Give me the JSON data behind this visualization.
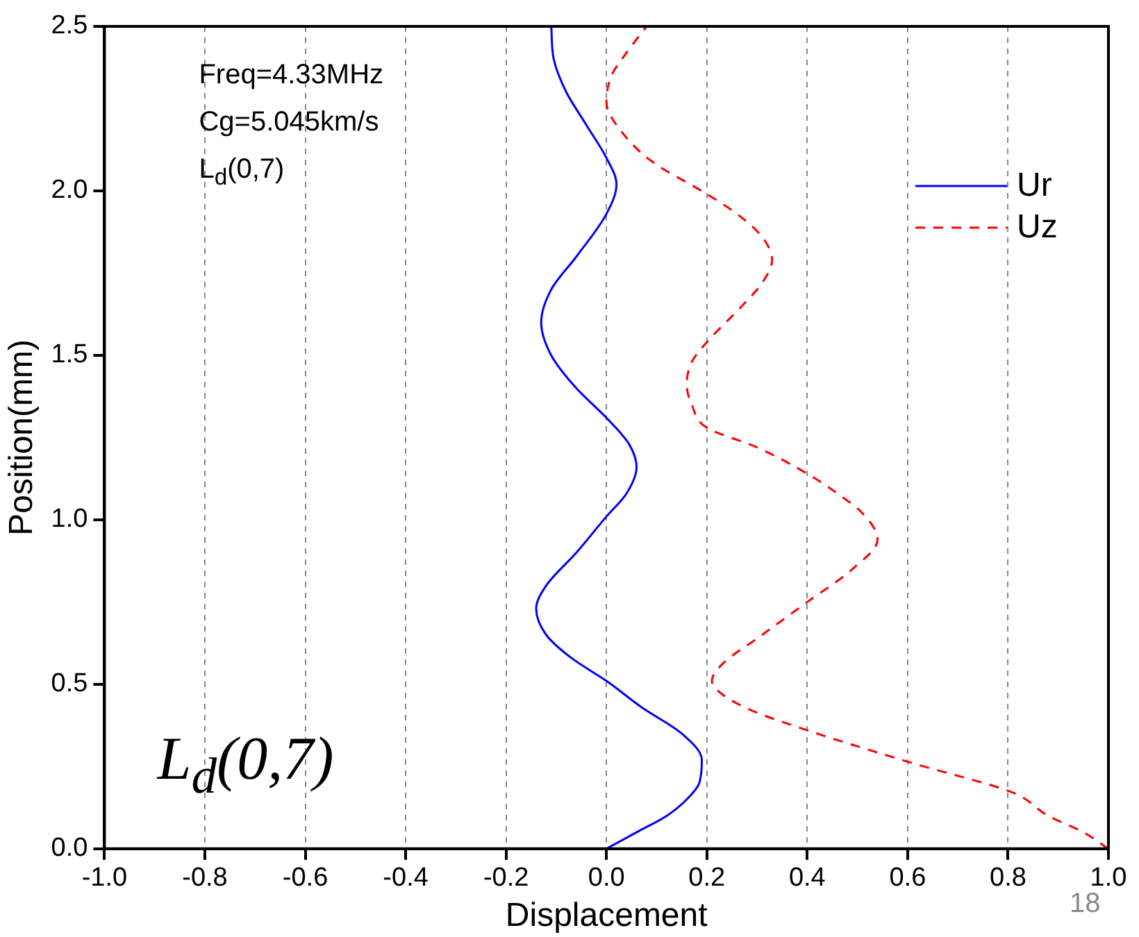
{
  "chart_data": {
    "type": "line",
    "xlabel": "Displacement",
    "ylabel": "Position(mm)",
    "xlim": [
      -1.0,
      1.0
    ],
    "xticks": [
      {
        "value": -1,
        "label": "-1.0"
      },
      {
        "value": -0.8,
        "label": "-0.8"
      },
      {
        "value": -0.6,
        "label": "-0.6"
      },
      {
        "value": -0.4,
        "label": "-0.4"
      },
      {
        "value": -0.2,
        "label": "-0.2"
      },
      {
        "value": 0,
        "label": "0.0"
      },
      {
        "value": 0.2,
        "label": "0.2"
      },
      {
        "value": 0.4,
        "label": "0.4"
      },
      {
        "value": 0.6,
        "label": "0.6"
      },
      {
        "value": 0.8,
        "label": "0.8"
      },
      {
        "value": 1,
        "label": "1.0"
      }
    ],
    "ylim": [
      0,
      2.5
    ],
    "yticks": [
      {
        "value": 0,
        "label": "0.0"
      },
      {
        "value": 0.5,
        "label": "0.5"
      },
      {
        "value": 1,
        "label": "1.0"
      },
      {
        "value": 1.5,
        "label": "1.5"
      },
      {
        "value": 2,
        "label": "2.0"
      },
      {
        "value": 2.5,
        "label": "2.5"
      }
    ],
    "grid": "x",
    "legend": "right",
    "marker": "none",
    "series": [
      {
        "name": "Ur",
        "color": "#0000ff",
        "line_style": "solid",
        "x": [
          0,
          0.06,
          0.12,
          0.16,
          0.185,
          0.19,
          0.15,
          0.07,
          0,
          -0.07,
          -0.12,
          -0.14,
          -0.12,
          -0.06,
          0,
          0.04,
          0.06,
          0.045,
          0,
          -0.06,
          -0.11,
          -0.13,
          -0.11,
          -0.06,
          0,
          0.02,
          0,
          -0.04,
          -0.08,
          -0.105,
          -0.11
        ],
        "values": [
          0,
          0.05,
          0.1,
          0.15,
          0.2,
          0.27,
          0.35,
          0.43,
          0.51,
          0.58,
          0.65,
          0.73,
          0.8,
          0.9,
          1.01,
          1.08,
          1.16,
          1.23,
          1.31,
          1.4,
          1.5,
          1.6,
          1.7,
          1.8,
          1.93,
          2.02,
          2.1,
          2.2,
          2.3,
          2.4,
          2.5
        ]
      },
      {
        "name": "Uz",
        "color": "#ff0000",
        "line_style": "dashed",
        "x": [
          1,
          0.95,
          0.88,
          0.81,
          0.61,
          0.4,
          0.29,
          0.23,
          0.21,
          0.23,
          0.31,
          0.4,
          0.49,
          0.54,
          0.51,
          0.46,
          0.4,
          0.3,
          0.2,
          0.17,
          0.16,
          0.17,
          0.2,
          0.27,
          0.31,
          0.33,
          0.31,
          0.26,
          0.2,
          0.09,
          0.03,
          0,
          0.01,
          0.04,
          0.08
        ],
        "values": [
          0,
          0.05,
          0.1,
          0.17,
          0.26,
          0.36,
          0.42,
          0.47,
          0.51,
          0.56,
          0.65,
          0.75,
          0.85,
          0.94,
          1.02,
          1.08,
          1.14,
          1.22,
          1.28,
          1.35,
          1.41,
          1.48,
          1.54,
          1.65,
          1.72,
          1.79,
          1.86,
          1.93,
          1.99,
          2.09,
          2.18,
          2.27,
          2.35,
          2.42,
          2.5
        ]
      }
    ],
    "annotations": [
      "Freq=4.33MHz",
      "Cg=5.045km/s",
      "L$_{d}$(0,7)",
      "L$_{d}$(0,7)",
      "18"
    ]
  }
}
